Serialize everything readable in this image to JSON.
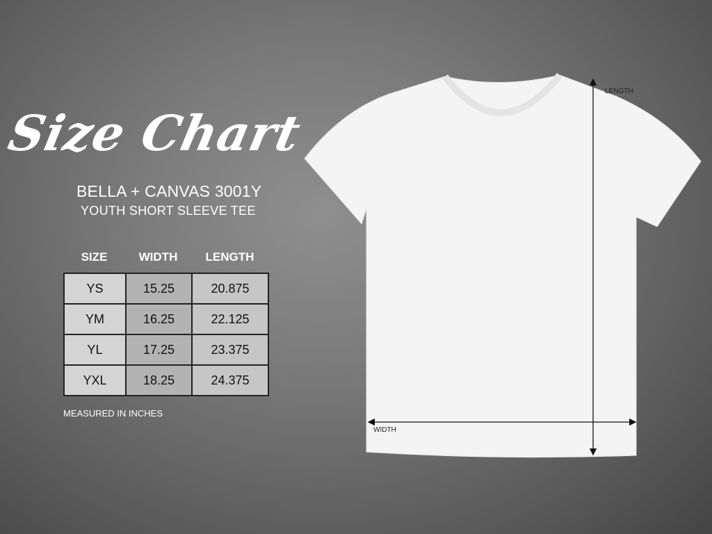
{
  "title": "Size Chart",
  "brand": "BELLA + CANVAS 3001Y",
  "subtitle": "YOUTH SHORT SLEEVE TEE",
  "table": {
    "headers": [
      "SIZE",
      "WIDTH",
      "LENGTH"
    ],
    "rows": [
      [
        "YS",
        "15.25",
        "20.875"
      ],
      [
        "YM",
        "16.25",
        "22.125"
      ],
      [
        "YL",
        "17.25",
        "23.375"
      ],
      [
        "YXL",
        "18.25",
        "24.375"
      ]
    ]
  },
  "note": "MEASURED IN INCHES",
  "diagram": {
    "length_label": "LENGTH",
    "width_label": "WIDTH",
    "shirt_color": "#f4f4f4"
  }
}
